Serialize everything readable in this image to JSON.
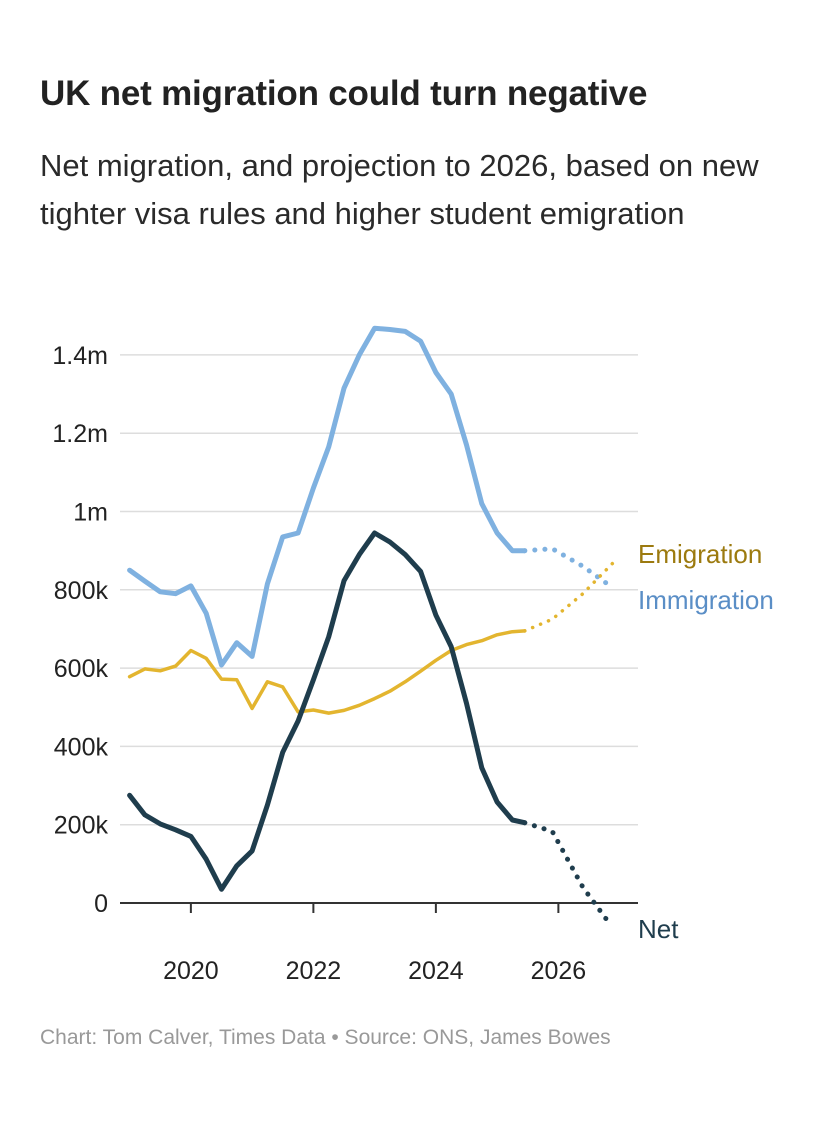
{
  "header": {
    "title": "UK net migration could turn negative",
    "subtitle": "Net migration, and projection to 2026, based on new tighter visa rules and higher student emigration"
  },
  "footer": {
    "credit": "Chart: Tom Calver, Times Data • Source: ONS, James Bowes"
  },
  "chart_data": {
    "type": "line",
    "title": "UK net migration could turn negative",
    "xlabel": "",
    "ylabel": "",
    "xlim": [
      2018.9,
      2026.9
    ],
    "ylim": [
      -50000,
      1500000
    ],
    "grid": true,
    "x_ticks": [
      2020,
      2022,
      2024,
      2026
    ],
    "x_tick_labels": [
      "2020",
      "2022",
      "2024",
      "2026"
    ],
    "y_ticks": [
      0,
      200000,
      400000,
      600000,
      800000,
      1000000,
      1200000,
      1400000
    ],
    "y_tick_labels": [
      "0",
      "200k",
      "400k",
      "600k",
      "800k",
      "1m",
      "1.2m",
      "1.4m"
    ],
    "series": [
      {
        "name": "Immigration",
        "label": "Immigration",
        "color": "#7fb1e0",
        "label_color": "#5a8ec6",
        "x": [
          2019.0,
          2019.25,
          2019.5,
          2019.75,
          2020.0,
          2020.25,
          2020.5,
          2020.75,
          2021.0,
          2021.25,
          2021.5,
          2021.75,
          2022.0,
          2022.25,
          2022.5,
          2022.75,
          2023.0,
          2023.25,
          2023.5,
          2023.75,
          2024.0,
          2024.25,
          2024.5,
          2024.75,
          2025.0,
          2025.25,
          2025.45
        ],
        "values": [
          850000,
          822000,
          795000,
          790000,
          810000,
          740000,
          608000,
          665000,
          630000,
          815000,
          935000,
          945000,
          1060000,
          1165000,
          1315000,
          1400000,
          1468000,
          1465000,
          1460000,
          1435000,
          1355000,
          1300000,
          1170000,
          1020000,
          945000,
          900000,
          900000
        ],
        "projection": {
          "x": [
            2025.45,
            2025.9,
            2026.4,
            2026.8
          ],
          "values": [
            900000,
            905000,
            860000,
            815000
          ]
        }
      },
      {
        "name": "Emigration",
        "label": "Emigration",
        "color": "#e3b52f",
        "label_color": "#9c7a0f",
        "x": [
          2019.0,
          2019.25,
          2019.5,
          2019.75,
          2020.0,
          2020.25,
          2020.5,
          2020.75,
          2021.0,
          2021.25,
          2021.5,
          2021.75,
          2022.0,
          2022.25,
          2022.5,
          2022.75,
          2023.0,
          2023.25,
          2023.5,
          2023.75,
          2024.0,
          2024.25,
          2024.5,
          2024.75,
          2025.0,
          2025.25,
          2025.45
        ],
        "values": [
          578000,
          598000,
          593000,
          605000,
          645000,
          625000,
          572000,
          570000,
          497000,
          565000,
          552000,
          488000,
          493000,
          485000,
          492000,
          505000,
          522000,
          541000,
          565000,
          592000,
          620000,
          645000,
          660000,
          670000,
          685000,
          693000,
          695000
        ],
        "projection": {
          "x": [
            2025.45,
            2025.9,
            2026.4,
            2026.9
          ],
          "values": [
            695000,
            725000,
            790000,
            870000
          ]
        }
      },
      {
        "name": "Net",
        "label": "Net",
        "color": "#1f3d4d",
        "label_color": "#1f3d4d",
        "x": [
          2019.0,
          2019.25,
          2019.5,
          2019.75,
          2020.0,
          2020.25,
          2020.5,
          2020.75,
          2021.0,
          2021.25,
          2021.5,
          2021.75,
          2022.0,
          2022.25,
          2022.5,
          2022.75,
          2023.0,
          2023.25,
          2023.5,
          2023.75,
          2024.0,
          2024.25,
          2024.5,
          2024.75,
          2025.0,
          2025.25,
          2025.45
        ],
        "values": [
          275000,
          225000,
          202000,
          187000,
          170000,
          112000,
          35000,
          95000,
          133000,
          250000,
          385000,
          465000,
          570000,
          680000,
          823000,
          890000,
          945000,
          922000,
          890000,
          847000,
          735000,
          655000,
          510000,
          345000,
          258000,
          212000,
          205000
        ],
        "projection": {
          "x": [
            2025.45,
            2025.9,
            2026.4,
            2026.8
          ],
          "values": [
            205000,
            183000,
            40000,
            -45000
          ]
        }
      }
    ]
  }
}
